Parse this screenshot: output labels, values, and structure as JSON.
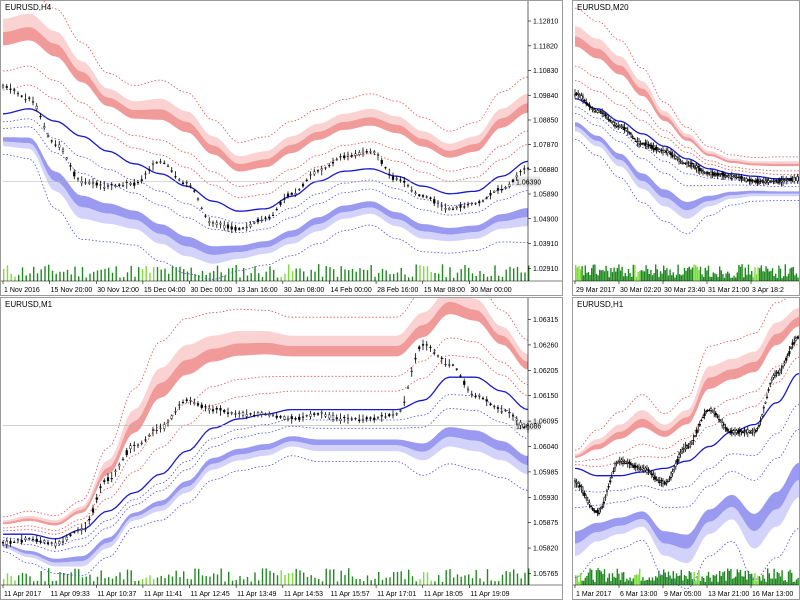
{
  "colors": {
    "upper_band_dark": "#f09a9a",
    "upper_band_light": "#fad2d2",
    "lower_band_dark": "#9a9af0",
    "lower_band_light": "#d2d2fa",
    "center_line": "#1a1acc",
    "upper_dotted": "#e24b4b",
    "lower_dotted": "#4b4be2",
    "candles": "#000000",
    "volume": "#1f8a1f",
    "volume_hi": "#7ddc3a",
    "current_line": "#b0b0b0"
  },
  "chart_data": [
    {
      "type": "line",
      "title": "EURUSD,H4",
      "y_ticks": [
        "1.12810",
        "1.11820",
        "1.10830",
        "1.09840",
        "1.08850",
        "1.07870",
        "1.06880",
        "1.05890",
        "1.04900",
        "1.03910",
        "1.02910"
      ],
      "x_ticks": [
        "1 Nov 2016",
        "15 Nov 20:00",
        "30 Nov 12:00",
        "15 Dec 04:00",
        "30 Dec 00:00",
        "13 Jan 16:00",
        "30 Jan 08:00",
        "14 Feb 00:00",
        "28 Feb 16:00",
        "15 Mar 08:00",
        "30 Mar 00:00"
      ],
      "current_price": "1.06390",
      "ylim": [
        1.0241,
        1.1321
      ],
      "x": [
        0,
        5,
        10,
        15,
        20,
        25,
        30,
        35,
        40,
        45,
        50,
        55,
        60,
        65,
        70,
        75,
        80,
        85,
        90,
        95,
        100
      ],
      "series": [
        {
          "values": [
            1.102,
            1.097,
            1.079,
            1.064,
            1.062,
            1.063,
            1.072,
            1.063,
            1.047,
            1.045,
            1.049,
            1.059,
            1.068,
            1.074,
            1.076,
            1.065,
            1.058,
            1.053,
            1.055,
            1.061,
            1.069
          ]
        },
        {
          "values": [
            1.091,
            1.093,
            1.088,
            1.082,
            1.076,
            1.071,
            1.067,
            1.062,
            1.056,
            1.052,
            1.053,
            1.058,
            1.064,
            1.068,
            1.069,
            1.066,
            1.062,
            1.059,
            1.06,
            1.066,
            1.072
          ]
        },
        {
          "values": [
            1.129,
            1.131,
            1.124,
            1.112,
            1.101,
            1.096,
            1.097,
            1.092,
            1.082,
            1.074,
            1.076,
            1.082,
            1.087,
            1.091,
            1.093,
            1.09,
            1.084,
            1.079,
            1.082,
            1.093,
            1.099
          ]
        },
        {
          "values": [
            1.078,
            1.077,
            1.06,
            1.049,
            1.047,
            1.045,
            1.039,
            1.034,
            1.031,
            1.033,
            1.035,
            1.039,
            1.044,
            1.049,
            1.051,
            1.046,
            1.041,
            1.04,
            1.041,
            1.045,
            1.046
          ]
        }
      ]
    },
    {
      "type": "line",
      "title": "EURUSD,M20",
      "y_ticks": [],
      "x_ticks": [
        "29 Mar 2017",
        "30 Mar 02:20",
        "30 Mar 23:40",
        "31 Mar 21:00",
        "3 Apr 18:2"
      ],
      "current_price": "",
      "ylim": [
        1.0241,
        1.1321
      ],
      "x": [
        0,
        10,
        20,
        30,
        40,
        50,
        60,
        70,
        80,
        90,
        100
      ],
      "series": [
        {
          "values": [
            1.099,
            1.092,
            1.086,
            1.079,
            1.076,
            1.071,
            1.067,
            1.066,
            1.064,
            1.064,
            1.065
          ]
        },
        {
          "values": [
            1.097,
            1.093,
            1.088,
            1.083,
            1.078,
            1.073,
            1.069,
            1.067,
            1.066,
            1.065,
            1.065
          ]
        },
        {
          "values": [
            1.126,
            1.121,
            1.114,
            1.104,
            1.092,
            1.083,
            1.076,
            1.073,
            1.072,
            1.072,
            1.072
          ]
        },
        {
          "values": [
            1.084,
            1.078,
            1.07,
            1.061,
            1.054,
            1.049,
            1.054,
            1.057,
            1.058,
            1.058,
            1.058
          ]
        }
      ]
    },
    {
      "type": "line",
      "title": "EURUSD,M1",
      "y_ticks": [
        "1.06315",
        "1.06260",
        "1.06205",
        "1.06150",
        "1.06095",
        "1.06040",
        "1.05985",
        "1.05930",
        "1.05875",
        "1.05820",
        "1.05765"
      ],
      "x_ticks": [
        "11 Apr 2017",
        "11 Apr 09:33",
        "11 Apr 10:37",
        "11 Apr 11:41",
        "11 Apr 12:45",
        "11 Apr 13:49",
        "11 Apr 14:53",
        "11 Apr 15:57",
        "11 Apr 17:01",
        "11 Apr 18:05",
        "11 Apr 19:09"
      ],
      "current_price": "1.06086",
      "ylim": [
        1.0574,
        1.0634
      ],
      "x": [
        0,
        5,
        10,
        15,
        20,
        25,
        30,
        35,
        40,
        45,
        50,
        55,
        60,
        65,
        70,
        75,
        80,
        85,
        90,
        95,
        100
      ],
      "series": [
        {
          "values": [
            1.0583,
            1.0584,
            1.0583,
            1.0586,
            1.0597,
            1.0604,
            1.0608,
            1.0614,
            1.0612,
            1.0611,
            1.0611,
            1.061,
            1.0611,
            1.061,
            1.061,
            1.0611,
            1.0626,
            1.0622,
            1.0615,
            1.0612,
            1.0608
          ]
        },
        {
          "values": [
            1.0585,
            1.0585,
            1.0584,
            1.0586,
            1.059,
            1.0594,
            1.0598,
            1.0603,
            1.0608,
            1.061,
            1.0611,
            1.0612,
            1.0612,
            1.0612,
            1.0612,
            1.0612,
            1.0614,
            1.0619,
            1.0619,
            1.0616,
            1.0612
          ]
        },
        {
          "values": [
            1.0588,
            1.0589,
            1.0588,
            1.0591,
            1.0601,
            1.0612,
            1.0621,
            1.0626,
            1.0628,
            1.0629,
            1.0629,
            1.0628,
            1.0628,
            1.0628,
            1.0628,
            1.0628,
            1.0633,
            1.0638,
            1.0636,
            1.063,
            1.0624
          ]
        },
        {
          "values": [
            1.0582,
            1.058,
            1.0578,
            1.0578,
            1.0582,
            1.0588,
            1.059,
            1.0594,
            1.0599,
            1.0601,
            1.0602,
            1.0604,
            1.0603,
            1.0603,
            1.0603,
            1.0603,
            1.0601,
            1.0604,
            1.0603,
            1.0601,
            1.0598
          ]
        }
      ]
    },
    {
      "type": "line",
      "title": "EURUSD,H1",
      "y_ticks": [],
      "x_ticks": [
        "1 Mar 2017",
        "6 Mar 13:00",
        "9 Mar 05:00",
        "13 Mar 21:00",
        "16 Mar 13:00"
      ],
      "current_price": "",
      "ylim": [
        1.04,
        1.078
      ],
      "x": [
        0,
        10,
        20,
        30,
        40,
        50,
        60,
        70,
        80,
        90,
        100
      ],
      "series": [
        {
          "values": [
            1.054,
            1.05,
            1.057,
            1.056,
            1.054,
            1.059,
            1.064,
            1.061,
            1.061,
            1.069,
            1.074
          ]
        },
        {
          "values": [
            1.056,
            1.055,
            1.055,
            1.0555,
            1.056,
            1.057,
            1.059,
            1.061,
            1.062,
            1.065,
            1.069
          ]
        },
        {
          "values": [
            1.058,
            1.06,
            1.062,
            1.064,
            1.062,
            1.064,
            1.07,
            1.071,
            1.072,
            1.076,
            1.078
          ]
        },
        {
          "values": [
            1.044,
            1.046,
            1.047,
            1.048,
            1.044,
            1.043,
            1.047,
            1.049,
            1.045,
            1.048,
            1.052
          ]
        }
      ]
    }
  ]
}
